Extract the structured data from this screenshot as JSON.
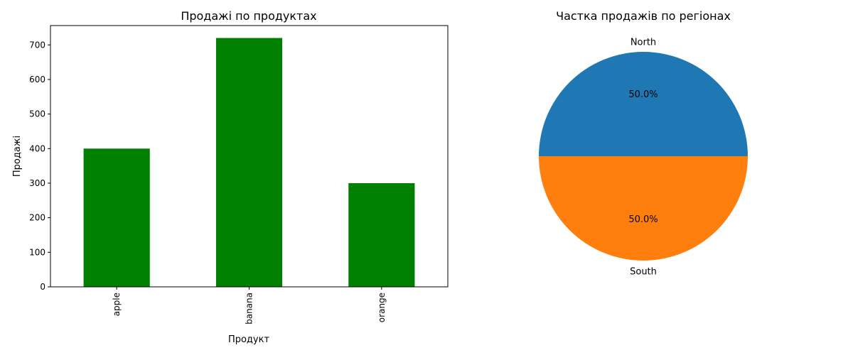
{
  "chart_data": [
    {
      "type": "bar",
      "title": "Продажі по продуктах",
      "xlabel": "Продукт",
      "ylabel": "Продажі",
      "categories": [
        "apple",
        "banana",
        "orange"
      ],
      "values": [
        400,
        720,
        300
      ],
      "ylim": [
        0,
        756
      ],
      "yticks": [
        0,
        100,
        200,
        300,
        400,
        500,
        600,
        700
      ],
      "bar_color": "#008000",
      "grid": false
    },
    {
      "type": "pie",
      "title": "Частка продажів по регіонах",
      "labels": [
        "North",
        "South"
      ],
      "values": [
        50,
        50
      ],
      "pct_labels": [
        "50.0%",
        "50.0%"
      ],
      "colors": [
        "#1f77b4",
        "#ff7f0e"
      ]
    }
  ]
}
